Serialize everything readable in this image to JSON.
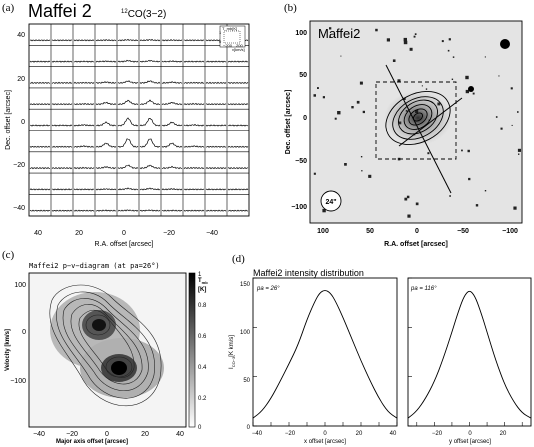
{
  "figure": {
    "panel_a": {
      "letter": "(a)",
      "title": "Maffei 2",
      "line": "12CO(3−2)",
      "line_sup": "12",
      "line_rest": "CO(3−2)",
      "ylabel": "Dec. offset [arcsec]",
      "xlabel": "R.A. offset [arcsec]",
      "yticks": [
        "40",
        "20",
        "0",
        "−20",
        "−40"
      ],
      "xticks": [
        "40",
        "20",
        "0",
        "−20",
        "−40"
      ],
      "inset_ylabel": "T_mb[K]",
      "inset_xlabel": "v[km/s]",
      "inset_ytick_0": "0",
      "inset_ytick_1": "1",
      "inset_xtick_left": "−200",
      "inset_xtick_right": "200"
    },
    "panel_b": {
      "letter": "(b)",
      "title": "Maffei2",
      "ylabel": "Dec. offset [arcsec]",
      "xlabel": "R.A. offset [arcsec]",
      "yticks": [
        "100",
        "50",
        "0",
        "−50",
        "−100"
      ],
      "xticks": [
        "100",
        "50",
        "0",
        "−50",
        "−100"
      ],
      "beam": "24\""
    },
    "panel_c": {
      "letter": "(c)",
      "title": "Maffei2   p−v−diagram  (at pa=26°)",
      "ylabel": "Velocity [km/s]",
      "xlabel": "Major axis offset [arcsec]",
      "yticks": [
        "100",
        "0",
        "−100"
      ],
      "xticks": [
        "−40",
        "−20",
        "0",
        "20",
        "40"
      ],
      "colorbar_label": "T_mb [K]",
      "colorbar_label_main": "T",
      "colorbar_label_sub": "mb",
      "colorbar_label_unit": "[K]",
      "colorbar_ticks": [
        "1",
        "0.8",
        "0.6",
        "0.4",
        "0.2",
        "0"
      ]
    },
    "panel_d": {
      "letter": "(d)",
      "title": "Maffei2  intensity distribution",
      "ylabel": "I_CO−3[K km/s]",
      "ylabel_main": "I",
      "ylabel_sub": "CO−3",
      "ylabel_unit": "[K km/s]",
      "left_xlabel": "x offset [arcsec]",
      "right_xlabel": "y offset [arcsec]",
      "left_pa": "pa = 26°",
      "right_pa": "pa = 116°",
      "yticks": [
        "150",
        "100",
        "50",
        "0"
      ],
      "left_xticks": [
        "−40",
        "−20",
        "0",
        "20",
        "40"
      ],
      "right_xticks": [
        "−20",
        "0",
        "20"
      ]
    }
  },
  "chart_data": [
    {
      "type": "line",
      "panel": "d-left",
      "x": [
        -40,
        -35,
        -30,
        -25,
        -20,
        -15,
        -10,
        -6,
        -3,
        0,
        3,
        6,
        10,
        15,
        20,
        25,
        30,
        35,
        40
      ],
      "values": [
        8,
        15,
        28,
        45,
        63,
        82,
        108,
        125,
        135,
        138,
        135,
        126,
        110,
        88,
        66,
        46,
        28,
        14,
        8
      ],
      "xlim": [
        -40,
        40
      ],
      "ylim": [
        0,
        150
      ]
    },
    {
      "type": "line",
      "panel": "d-right",
      "x": [
        -35,
        -30,
        -25,
        -20,
        -15,
        -10,
        -6,
        -3,
        0,
        3,
        6,
        10,
        15,
        20,
        25,
        30,
        35
      ],
      "values": [
        8,
        15,
        28,
        45,
        68,
        95,
        118,
        132,
        138,
        132,
        118,
        95,
        66,
        42,
        25,
        13,
        8
      ],
      "xlim": [
        -35,
        35
      ],
      "ylim": [
        0,
        150
      ]
    }
  ]
}
